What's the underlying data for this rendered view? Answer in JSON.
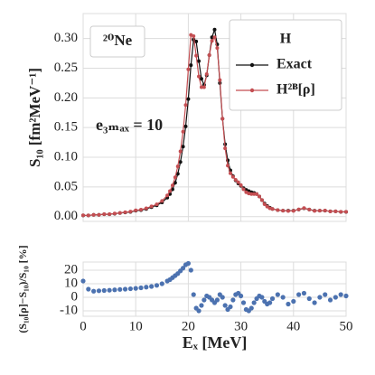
{
  "chart_data": [
    {
      "type": "line",
      "ylabel": "S₁₀ [fm²MeV⁻¹]",
      "annotations": [
        "²⁰Ne",
        "e₃ₘₐₓ = 10"
      ],
      "legend_title": "H",
      "legend": "upper right",
      "grid": true,
      "xlim": [
        0,
        50
      ],
      "xticks": [
        0,
        10,
        20,
        30,
        40,
        50
      ],
      "ylim": [
        -0.008,
        0.342
      ],
      "yticks": [
        {
          "value": 0,
          "label": "0.00"
        },
        {
          "value": 0.05,
          "label": "0.05"
        },
        {
          "value": 0.1,
          "label": "0.10"
        },
        {
          "value": 0.15,
          "label": "0.15"
        },
        {
          "value": 0.2,
          "label": "0.20"
        },
        {
          "value": 0.25,
          "label": "0.25"
        },
        {
          "value": 0.3,
          "label": "0.30"
        }
      ],
      "x": [
        0,
        1,
        2,
        3,
        4,
        5,
        6,
        7,
        8,
        9,
        10,
        11,
        12,
        13,
        14,
        15,
        16,
        16.5,
        17,
        17.5,
        18,
        18.5,
        19,
        19.5,
        20,
        20.5,
        21,
        21.5,
        22,
        22.5,
        23,
        23.5,
        24,
        24.5,
        25,
        25.5,
        26,
        26.5,
        27,
        27.5,
        28,
        28.5,
        29,
        29.5,
        30,
        30.5,
        31,
        31.5,
        32,
        32.5,
        33,
        33.5,
        34,
        34.5,
        35,
        35.5,
        36,
        37,
        38,
        39,
        40,
        41,
        42,
        43,
        44,
        45,
        46,
        47,
        48,
        49,
        50
      ],
      "series": [
        {
          "name": "Exact",
          "color": "#111111",
          "values": [
            0.002,
            0.002,
            0.003,
            0.003,
            0.004,
            0.004,
            0.005,
            0.006,
            0.007,
            0.008,
            0.01,
            0.011,
            0.013,
            0.016,
            0.019,
            0.024,
            0.032,
            0.038,
            0.046,
            0.057,
            0.072,
            0.092,
            0.118,
            0.152,
            0.198,
            0.255,
            0.298,
            0.295,
            0.262,
            0.232,
            0.222,
            0.238,
            0.272,
            0.302,
            0.315,
            0.29,
            0.225,
            0.165,
            0.122,
            0.095,
            0.078,
            0.068,
            0.061,
            0.056,
            0.052,
            0.048,
            0.045,
            0.043,
            0.041,
            0.04,
            0.038,
            0.034,
            0.028,
            0.022,
            0.018,
            0.015,
            0.013,
            0.011,
            0.01,
            0.01,
            0.01,
            0.012,
            0.014,
            0.012,
            0.01,
            0.01,
            0.01,
            0.009,
            0.009,
            0.008,
            0.008
          ]
        },
        {
          "name": "H²ᴮ[ρ]",
          "color": "#c44e52",
          "values": [
            0.0022,
            0.0021,
            0.0031,
            0.0031,
            0.0042,
            0.0042,
            0.0053,
            0.0063,
            0.0074,
            0.0085,
            0.0107,
            0.0118,
            0.014,
            0.0173,
            0.0207,
            0.0264,
            0.0358,
            0.0429,
            0.0527,
            0.0661,
            0.0846,
            0.11,
            0.143,
            0.188,
            0.248,
            0.306,
            0.304,
            0.271,
            0.236,
            0.218,
            0.218,
            0.24,
            0.272,
            0.296,
            0.302,
            0.284,
            0.23,
            0.165,
            0.115,
            0.086,
            0.073,
            0.067,
            0.062,
            0.058,
            0.053,
            0.046,
            0.041,
            0.039,
            0.038,
            0.038,
            0.038,
            0.034,
            0.028,
            0.021,
            0.017,
            0.014,
            0.013,
            0.011,
            0.01,
            0.0095,
            0.0097,
            0.0122,
            0.0144,
            0.0119,
            0.0096,
            0.01,
            0.0102,
            0.0088,
            0.009,
            0.0082,
            0.0081
          ]
        }
      ]
    },
    {
      "type": "scatter",
      "ylabel": "(S₁₀[ρ]−S₁₀)/S₁₀ [%]",
      "xlabel": "Eₓ [MeV]",
      "grid": true,
      "xlim": [
        0,
        50
      ],
      "xticks": [
        0,
        10,
        20,
        30,
        40,
        50
      ],
      "ylim": [
        -14,
        26
      ],
      "yticks": [
        -10,
        0,
        10,
        20
      ],
      "x": [
        0,
        1,
        2,
        3,
        4,
        5,
        6,
        7,
        8,
        9,
        10,
        11,
        12,
        13,
        14,
        15,
        16,
        16.5,
        17,
        17.5,
        18,
        18.5,
        19,
        19.5,
        20,
        20.5,
        21,
        21.5,
        22,
        22.5,
        23,
        23.5,
        24,
        24.5,
        25,
        25.5,
        26,
        26.5,
        27,
        27.5,
        28,
        28.5,
        29,
        29.5,
        30,
        30.5,
        31,
        31.5,
        32,
        32.5,
        33,
        33.5,
        34,
        34.5,
        35,
        35.5,
        36,
        37,
        38,
        39,
        40,
        41,
        42,
        43,
        44,
        45,
        46,
        47,
        48,
        49,
        50
      ],
      "color": "#4c72b0",
      "values": [
        12,
        6,
        4.5,
        4.8,
        5,
        5.2,
        5.5,
        5.8,
        6,
        6.3,
        6.6,
        7,
        7.5,
        8,
        8.8,
        10,
        12,
        13,
        14.5,
        16,
        17.5,
        19.5,
        21.5,
        24,
        25,
        20,
        2,
        -8,
        -10,
        -6,
        -2,
        1,
        0,
        -2,
        -4,
        -2,
        2,
        0,
        -6,
        -9,
        -7,
        -2,
        2,
        3,
        1,
        -4,
        -9,
        -10,
        -8,
        -4,
        -1,
        1,
        0,
        -3,
        -5,
        -4,
        -1,
        2,
        0,
        -5,
        -3,
        2,
        3,
        -1,
        -4,
        0,
        2,
        -2,
        0,
        2,
        1
      ]
    }
  ]
}
